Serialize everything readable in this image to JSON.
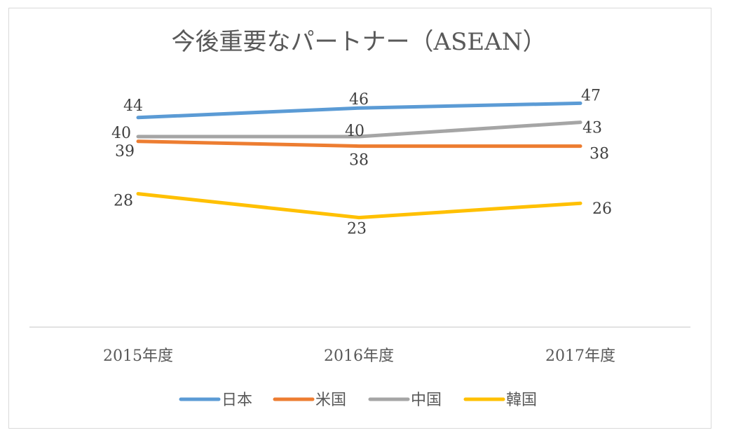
{
  "chart_data": {
    "type": "line",
    "title": "今後重要なパートナー（ASEAN）",
    "categories": [
      "2015年度",
      "2016年度",
      "2017年度"
    ],
    "series": [
      {
        "name": "日本",
        "values": [
          44,
          46,
          47
        ],
        "color": "#5b9bd5"
      },
      {
        "name": "米国",
        "values": [
          39,
          38,
          38
        ],
        "color": "#ed7d31"
      },
      {
        "name": "中国",
        "values": [
          40,
          40,
          43
        ],
        "color": "#a5a5a5"
      },
      {
        "name": "韓国",
        "values": [
          28,
          23,
          26
        ],
        "color": "#ffc000"
      }
    ],
    "ylim": [
      0,
      70
    ],
    "grid": false,
    "legend": "bottom"
  }
}
